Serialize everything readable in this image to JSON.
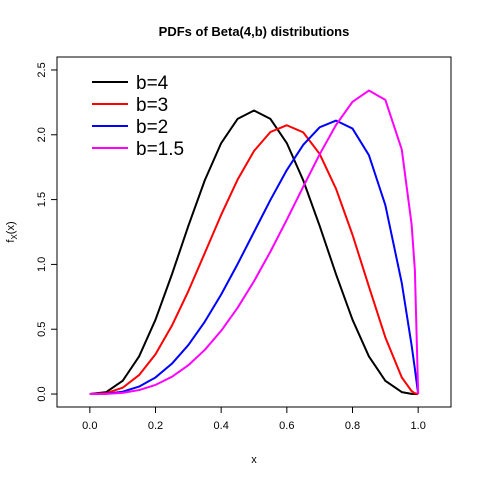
{
  "chart_data": {
    "type": "line",
    "title": "PDFs of Beta(4,b) distributions",
    "x_label": "x",
    "y_label": {
      "base": "f",
      "subscript": "X",
      "rest": "(x)"
    },
    "x": [
      0,
      0.05,
      0.1,
      0.15,
      0.2,
      0.25,
      0.3,
      0.35,
      0.4,
      0.45,
      0.5,
      0.55,
      0.6,
      0.65,
      0.7,
      0.75,
      0.8,
      0.85,
      0.9,
      0.95,
      0.98,
      0.99,
      1
    ],
    "series": [
      {
        "name": "b=4",
        "color": "#000000",
        "values": [
          0,
          0.015,
          0.1021,
          0.2902,
          0.5734,
          0.9229,
          1.2965,
          1.6484,
          1.9354,
          2.1225,
          2.1875,
          2.1225,
          1.9354,
          1.6484,
          1.2965,
          0.9229,
          0.5734,
          0.2902,
          0.1021,
          0.015,
          0.0011,
          0.0001,
          0
        ]
      },
      {
        "name": "b=3",
        "color": "#ff0000",
        "values": [
          0,
          0.0068,
          0.0486,
          0.1463,
          0.3072,
          0.5273,
          0.7938,
          1.0869,
          1.3824,
          1.6539,
          1.875,
          2.0215,
          2.0736,
          2.0185,
          1.8522,
          1.582,
          1.2288,
          0.8291,
          0.4374,
          0.1286,
          0.0226,
          0.0058,
          0
        ]
      },
      {
        "name": "b=2",
        "color": "#0000ff",
        "values": [
          0,
          0.0024,
          0.018,
          0.0574,
          0.128,
          0.2344,
          0.378,
          0.5574,
          0.768,
          1.0024,
          1.25,
          1.4974,
          1.728,
          1.9224,
          2.058,
          2.1094,
          2.048,
          1.8424,
          1.458,
          0.8574,
          0.3765,
          0.1941,
          0
        ]
      },
      {
        "name": "b=1.5",
        "color": "#ff00ff",
        "values": [
          0,
          0.0012,
          0.0093,
          0.0306,
          0.0704,
          0.1332,
          0.2224,
          0.3403,
          0.488,
          0.6652,
          0.8701,
          1.0987,
          1.3448,
          1.5993,
          1.8493,
          2.0764,
          2.254,
          2.3413,
          2.2693,
          1.8872,
          1.3102,
          0.9551,
          0
        ]
      }
    ],
    "xlim": [
      -0.1,
      1.1
    ],
    "ylim": [
      -0.1,
      2.6
    ],
    "xticks": [
      {
        "value": 0,
        "label": "0.0"
      },
      {
        "value": 0.2,
        "label": "0.2"
      },
      {
        "value": 0.4,
        "label": "0.4"
      },
      {
        "value": 0.6,
        "label": "0.6"
      },
      {
        "value": 0.8,
        "label": "0.8"
      },
      {
        "value": 1,
        "label": "1.0"
      }
    ],
    "yticks": [
      {
        "value": 0,
        "label": "0.0"
      },
      {
        "value": 0.5,
        "label": "0.5"
      },
      {
        "value": 1,
        "label": "1.0"
      },
      {
        "value": 1.5,
        "label": "1.5"
      },
      {
        "value": 2,
        "label": "2.0"
      },
      {
        "value": 2.5,
        "label": "2.5"
      }
    ],
    "legend": "top-left",
    "grid": false
  }
}
